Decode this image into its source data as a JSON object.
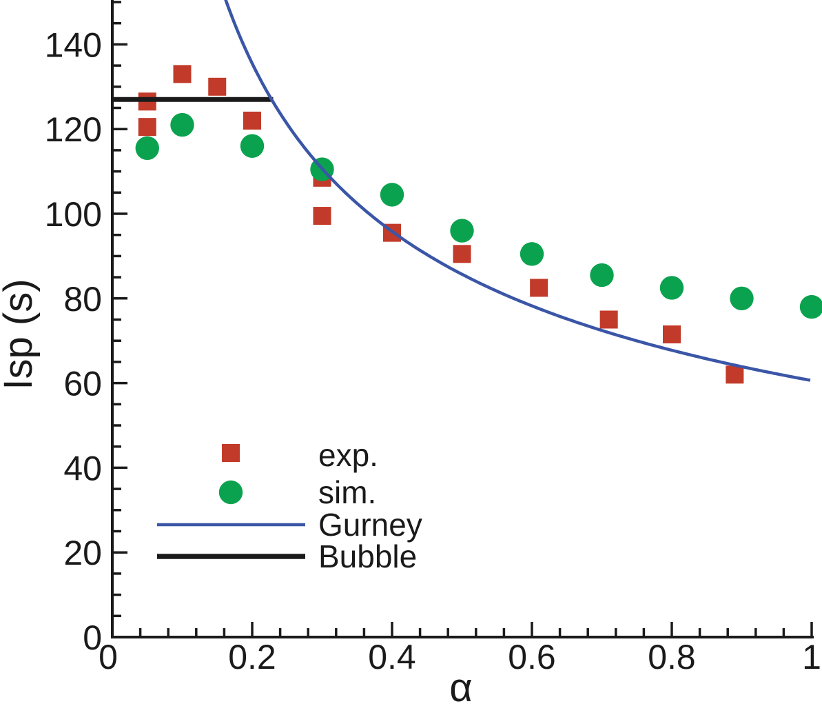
{
  "figure": {
    "title": "",
    "y_axis_title": "Isp (s)",
    "x_axis_title": "α"
  },
  "legend": {
    "position": "lower-left-inside",
    "items": [
      {
        "label": "exp.",
        "marker": "square-icon",
        "color": "#c23a29"
      },
      {
        "label": "sim.",
        "marker": "circle-icon",
        "color": "#0aa24e"
      },
      {
        "label": "Gurney",
        "marker": "thin-line-icon",
        "color": "#3b56a7"
      },
      {
        "label": "Bubble",
        "marker": "thick-line-icon",
        "color": "#1a1a1a"
      }
    ]
  },
  "chart_data": {
    "type": "scatter",
    "title": "",
    "xlabel": "α",
    "ylabel": "Isp (s)",
    "xlim": [
      0,
      1.0
    ],
    "ylim": [
      0,
      150.5
    ],
    "grid": false,
    "x_major_ticks": [
      0,
      0.2,
      0.4,
      0.6,
      0.8,
      1
    ],
    "x_tick_labels": [
      "0",
      "0.2",
      "0.4",
      "0.6",
      "0.8",
      "1"
    ],
    "x_minor_step": 0.04,
    "y_major_ticks": [
      0,
      20,
      40,
      60,
      80,
      100,
      120,
      140
    ],
    "y_tick_labels": [
      "0",
      "20",
      "40",
      "60",
      "80",
      "100",
      "120",
      "140"
    ],
    "y_minor_step": 5,
    "series": [
      {
        "name": "exp.",
        "kind": "scatter",
        "marker": "square",
        "color": "#c23a29",
        "points": [
          [
            0.05,
            126.5
          ],
          [
            0.05,
            120.5
          ],
          [
            0.1,
            133
          ],
          [
            0.15,
            130
          ],
          [
            0.2,
            122
          ],
          [
            0.3,
            108.5
          ],
          [
            0.3,
            99.5
          ],
          [
            0.4,
            95.5
          ],
          [
            0.5,
            90.5
          ],
          [
            0.61,
            82.5
          ],
          [
            0.71,
            75
          ],
          [
            0.8,
            71.5
          ],
          [
            0.89,
            62
          ]
        ]
      },
      {
        "name": "sim.",
        "kind": "scatter",
        "marker": "circle",
        "color": "#0aa24e",
        "points": [
          [
            0.05,
            115.5
          ],
          [
            0.1,
            121
          ],
          [
            0.2,
            116
          ],
          [
            0.3,
            110.5
          ],
          [
            0.4,
            104.5
          ],
          [
            0.5,
            96
          ],
          [
            0.6,
            90.5
          ],
          [
            0.7,
            85.5
          ],
          [
            0.8,
            82.5
          ],
          [
            0.9,
            80
          ],
          [
            1.0,
            78
          ]
        ]
      },
      {
        "name": "Gurney",
        "kind": "curve",
        "color": "#3b56a7",
        "formula": "Isp = k / sqrt(alpha)",
        "k": 60.6,
        "alpha_range": [
          0.162,
          1.0
        ],
        "sample_points": [
          [
            0.2,
            135.5
          ],
          [
            0.3,
            110.6
          ],
          [
            0.4,
            95.8
          ],
          [
            0.5,
            85.7
          ],
          [
            0.6,
            78.2
          ],
          [
            0.7,
            72.4
          ],
          [
            0.8,
            67.8
          ],
          [
            0.9,
            63.9
          ],
          [
            1.0,
            60.6
          ]
        ]
      },
      {
        "name": "Bubble",
        "kind": "hline",
        "color": "#1a1a1a",
        "value": 127,
        "alpha_range": [
          0,
          0.23
        ]
      }
    ]
  }
}
